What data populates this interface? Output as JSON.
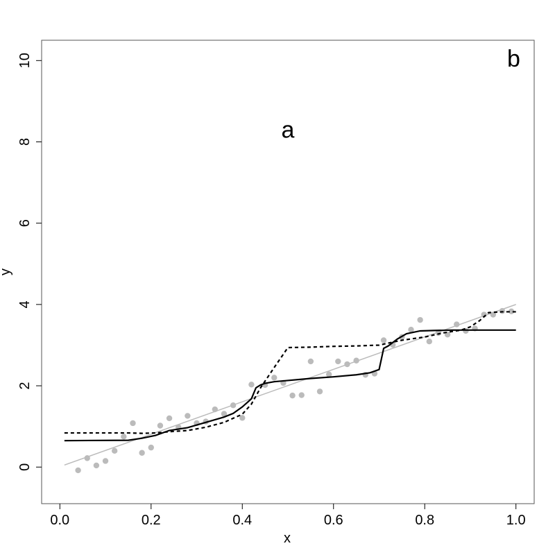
{
  "chart_data": {
    "type": "scatter",
    "title": "",
    "xlabel": "x",
    "ylabel": "y",
    "xlim": [
      -0.04,
      1.04
    ],
    "ylim": [
      -0.9,
      10.5
    ],
    "x_ticks": [
      0.0,
      0.2,
      0.4,
      0.6,
      0.8,
      1.0
    ],
    "x_tick_labels": [
      "0.0",
      "0.2",
      "0.4",
      "0.6",
      "0.8",
      "1.0"
    ],
    "y_ticks": [
      0,
      2,
      4,
      6,
      8,
      10
    ],
    "y_tick_labels": [
      "0",
      "2",
      "4",
      "6",
      "8",
      "10"
    ],
    "grid": false,
    "annotations": [
      {
        "text": "a",
        "x": 0.5,
        "y": 8.1
      },
      {
        "text": "b",
        "x": 0.995,
        "y": 9.85
      }
    ],
    "colors": {
      "points": "#bbbbbb",
      "reference_line": "#bbbbbb",
      "solid_fit": "#000000",
      "dashed_fit": "#000000"
    },
    "series": [
      {
        "type": "scatter",
        "x": [
          0.04,
          0.06,
          0.08,
          0.1,
          0.12,
          0.14,
          0.16,
          0.18,
          0.2,
          0.22,
          0.24,
          0.26,
          0.28,
          0.3,
          0.32,
          0.34,
          0.36,
          0.38,
          0.4,
          0.42,
          0.45,
          0.47,
          0.49,
          0.51,
          0.53,
          0.55,
          0.57,
          0.59,
          0.61,
          0.63,
          0.65,
          0.67,
          0.69,
          0.71,
          0.73,
          0.75,
          0.77,
          0.79,
          0.81,
          0.83,
          0.85,
          0.87,
          0.89,
          0.91,
          0.93,
          0.95,
          0.97,
          0.99
        ],
        "y": [
          -0.08,
          0.22,
          0.04,
          0.15,
          0.4,
          0.75,
          1.08,
          0.35,
          0.48,
          1.02,
          1.2,
          0.98,
          1.26,
          1.08,
          1.12,
          1.42,
          1.31,
          1.52,
          1.21,
          2.03,
          2.02,
          2.2,
          2.07,
          1.76,
          1.77,
          2.6,
          1.86,
          2.28,
          2.6,
          2.53,
          2.62,
          2.27,
          2.3,
          3.12,
          3.01,
          3.2,
          3.38,
          3.62,
          3.09,
          3.3,
          3.26,
          3.51,
          3.35,
          3.41,
          3.75,
          3.75,
          3.84,
          3.83
        ]
      },
      {
        "type": "line",
        "style": "reference",
        "x": [
          0.01,
          1.0
        ],
        "y": [
          0.05,
          4.0
        ]
      },
      {
        "type": "line",
        "style": "solid",
        "x": [
          0.01,
          0.15,
          0.18,
          0.21,
          0.24,
          0.28,
          0.32,
          0.36,
          0.38,
          0.4,
          0.42,
          0.43,
          0.44,
          0.45,
          0.47,
          0.5,
          0.55,
          0.6,
          0.65,
          0.68,
          0.7,
          0.71,
          0.72,
          0.74,
          0.76,
          0.79,
          0.82,
          0.86,
          0.9,
          1.0
        ],
        "y": [
          0.65,
          0.66,
          0.71,
          0.78,
          0.9,
          0.97,
          1.1,
          1.23,
          1.32,
          1.48,
          1.68,
          1.95,
          2.02,
          2.06,
          2.1,
          2.13,
          2.18,
          2.22,
          2.27,
          2.32,
          2.4,
          2.92,
          2.98,
          3.15,
          3.28,
          3.35,
          3.36,
          3.37,
          3.37,
          3.37
        ]
      },
      {
        "type": "line",
        "style": "dashed",
        "x": [
          0.01,
          0.15,
          0.18,
          0.21,
          0.24,
          0.28,
          0.32,
          0.36,
          0.4,
          0.42,
          0.44,
          0.47,
          0.5,
          0.55,
          0.6,
          0.65,
          0.7,
          0.72,
          0.75,
          0.8,
          0.84,
          0.88,
          0.9,
          0.92,
          0.94,
          0.97,
          1.0
        ],
        "y": [
          0.84,
          0.84,
          0.83,
          0.84,
          0.87,
          0.9,
          0.98,
          1.1,
          1.3,
          1.55,
          1.95,
          2.45,
          2.94,
          2.95,
          2.97,
          2.98,
          3.0,
          3.05,
          3.12,
          3.2,
          3.3,
          3.37,
          3.45,
          3.6,
          3.8,
          3.82,
          3.82
        ]
      }
    ]
  }
}
